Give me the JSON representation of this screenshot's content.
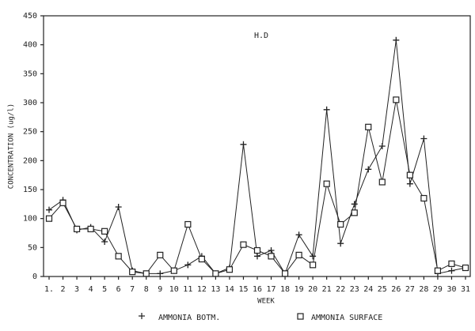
{
  "chart_data": {
    "type": "line",
    "title": "H.D",
    "x_label": "WEEK",
    "y_label": "CONCENTRATION (ug/l)",
    "categories": [
      "1.",
      "2",
      "3",
      "4",
      "5",
      "6",
      "7",
      "8",
      "9",
      "10",
      "11",
      "12",
      "13",
      "14",
      "15",
      "16",
      "17",
      "18",
      "19",
      "20",
      "21",
      "22",
      "23",
      "24",
      "25",
      "26",
      "27",
      "28",
      "29",
      "30",
      "31"
    ],
    "series": [
      {
        "name": "AMMONIA BOTM.",
        "color": "#222222",
        "marker": "plus",
        "values": [
          115,
          132,
          80,
          85,
          60,
          120,
          10,
          5,
          5,
          10,
          20,
          35,
          5,
          15,
          228,
          35,
          45,
          5,
          72,
          35,
          288,
          57,
          125,
          185,
          225,
          408,
          160,
          238,
          5,
          10,
          15
        ]
      },
      {
        "name": "AMMONIA SURFACE",
        "color": "#222222",
        "marker": "square",
        "values": [
          100,
          127,
          82,
          82,
          78,
          35,
          8,
          5,
          37,
          10,
          90,
          30,
          5,
          12,
          55,
          45,
          35,
          5,
          37,
          20,
          160,
          90,
          110,
          258,
          163,
          305,
          175,
          135,
          10,
          22,
          15
        ]
      }
    ],
    "ylim": [
      0,
      450
    ],
    "yticks": [
      0,
      50,
      100,
      150,
      200,
      250,
      300,
      350,
      400,
      450
    ]
  }
}
